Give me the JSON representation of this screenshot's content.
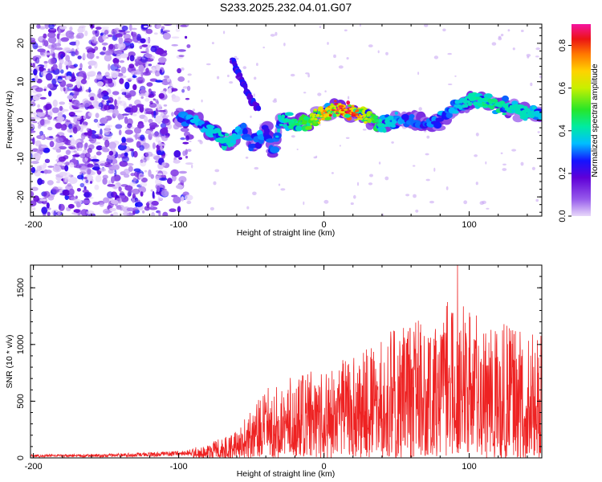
{
  "chart_data": [
    {
      "type": "heatmap",
      "title": "S233.2025.232.04.01.G07",
      "xlabel": "Height of straight line (km)",
      "ylabel": "Frequency (Hz)",
      "xlim": [
        -202,
        150
      ],
      "ylim": [
        -25,
        25
      ],
      "xticks": [
        -200,
        -100,
        0,
        100
      ],
      "yticks": [
        -20,
        -10,
        0,
        10,
        20
      ],
      "colorbar": {
        "label": "Normalized spectral amplitude",
        "range": [
          0.0,
          0.9
        ],
        "ticks": [
          0.0,
          0.2,
          0.4,
          0.6,
          0.8
        ]
      },
      "noise_region_x": [
        -202,
        -100
      ],
      "signal_ridge": {
        "x": [
          -100,
          -90,
          -80,
          -70,
          -65,
          -60,
          -55,
          -50,
          -45,
          -40,
          -35,
          -30,
          -20,
          -10,
          0,
          10,
          20,
          30,
          40,
          50,
          60,
          70,
          80,
          90,
          100,
          110,
          120,
          130,
          140,
          150
        ],
        "frequency_hz": [
          1,
          0,
          -2,
          -5,
          -6,
          -4,
          -2,
          -6,
          -5,
          -2,
          -8,
          0,
          -1,
          0,
          2,
          3,
          2,
          1,
          -1,
          0,
          0,
          -1,
          0,
          3,
          5,
          5,
          4,
          3,
          2,
          1
        ],
        "amplitude": [
          0.3,
          0.35,
          0.35,
          0.4,
          0.4,
          0.35,
          0.3,
          0.35,
          0.35,
          0.3,
          0.3,
          0.4,
          0.45,
          0.55,
          0.75,
          0.9,
          0.85,
          0.6,
          0.4,
          0.35,
          0.3,
          0.3,
          0.35,
          0.35,
          0.4,
          0.45,
          0.45,
          0.4,
          0.4,
          0.35
        ]
      },
      "secondary_branch": {
        "x": [
          -63,
          -60,
          -55,
          -50,
          -45
        ],
        "frequency_hz": [
          16,
          13,
          9,
          5,
          3
        ]
      }
    },
    {
      "type": "line",
      "xlabel": "Height of straight line (km)",
      "ylabel": "SNR (10 * v/v)",
      "xlim": [
        -202,
        150
      ],
      "ylim": [
        0,
        1700
      ],
      "xticks": [
        -200,
        -100,
        0,
        100
      ],
      "yticks": [
        0,
        500,
        1000,
        1500
      ],
      "series": [
        {
          "name": "SNR",
          "color": "#ee2222",
          "envelope_x": [
            -202,
            -150,
            -100,
            -80,
            -70,
            -60,
            -50,
            -40,
            -30,
            -20,
            -10,
            0,
            10,
            20,
            30,
            40,
            50,
            60,
            70,
            80,
            90,
            100,
            110,
            120,
            130,
            140,
            150
          ],
          "envelope_y": [
            30,
            35,
            60,
            120,
            190,
            260,
            420,
            620,
            700,
            720,
            760,
            800,
            850,
            900,
            980,
            1050,
            1200,
            1250,
            1200,
            1250,
            1500,
            1300,
            1250,
            1200,
            1150,
            1100,
            1100
          ],
          "peak_x": 92,
          "peak_y": 1700
        }
      ]
    }
  ]
}
